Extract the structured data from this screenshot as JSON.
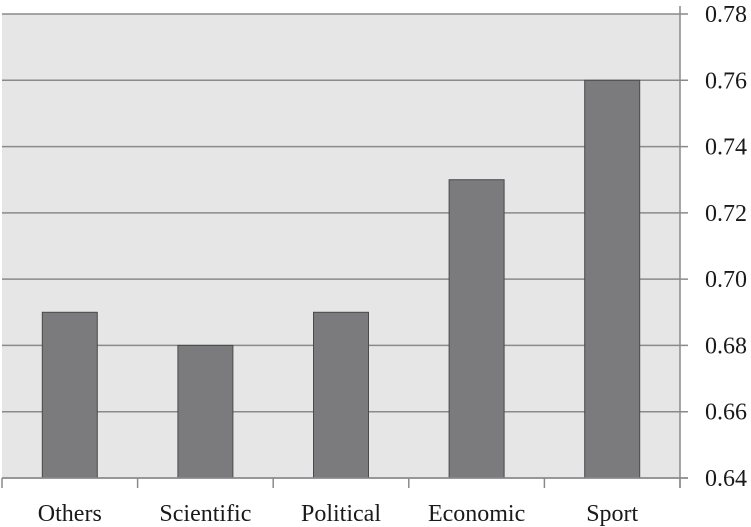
{
  "chart_data": {
    "type": "bar",
    "categories": [
      "Others",
      "Scientific",
      "Political",
      "Economic",
      "Sport"
    ],
    "values": [
      0.69,
      0.68,
      0.69,
      0.73,
      0.76
    ],
    "ylim": [
      0.64,
      0.78
    ],
    "yticks": [
      "0.64",
      "0.66",
      "0.68",
      "0.70",
      "0.72",
      "0.74",
      "0.76",
      "0.78"
    ],
    "grid": true,
    "y_axis_side": "right",
    "colors": {
      "plot_background": "#e6e6e6",
      "bar_fill": "#7b7b7d",
      "bar_stroke": "#4a4a4a",
      "gridline": "#8a8a8a",
      "axis": "#8a8a8a"
    }
  }
}
